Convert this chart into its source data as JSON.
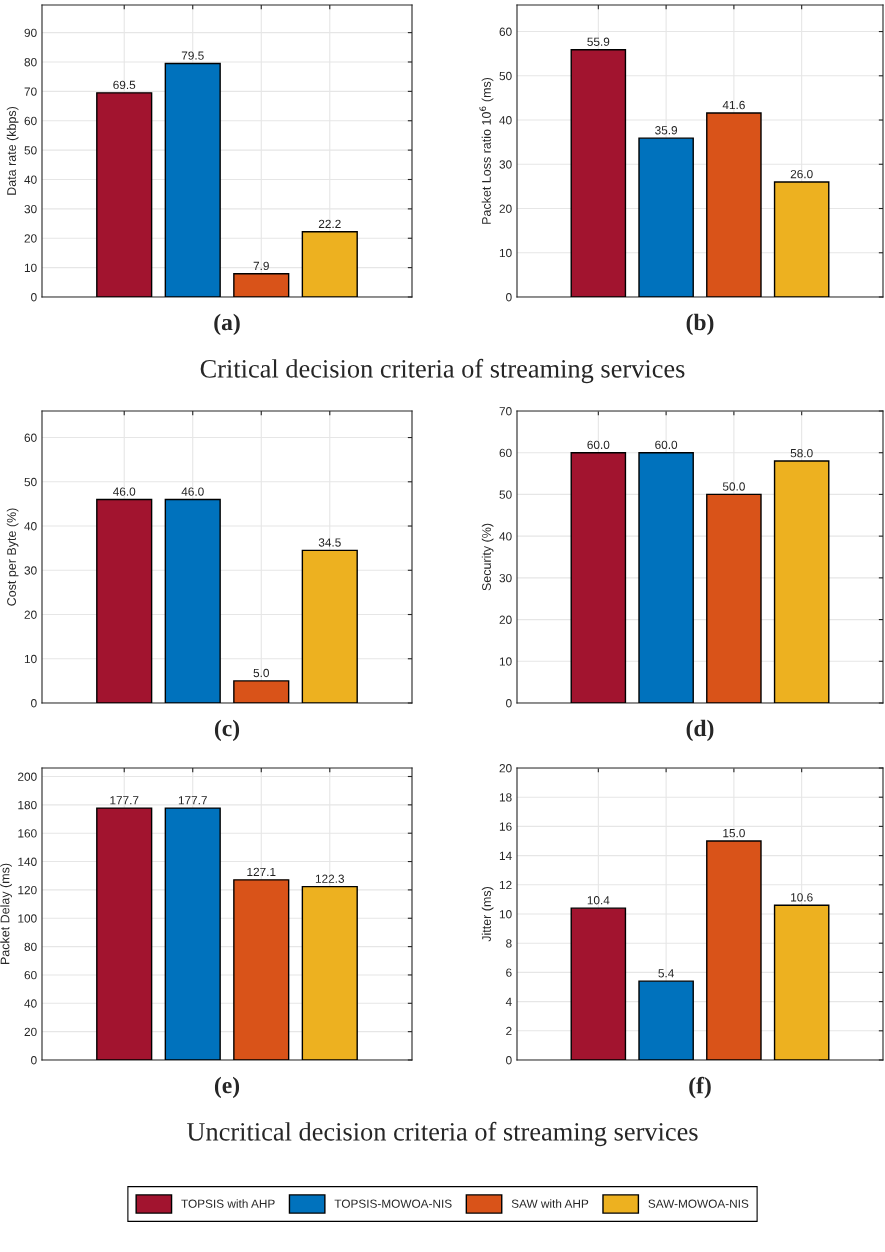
{
  "chart_data": [
    {
      "type": "bar",
      "categories": [
        null,
        null,
        null,
        null
      ],
      "values": [
        69.5,
        79.5,
        7.9,
        22.2
      ],
      "colors": [
        "#a2142f",
        "#0072bd",
        "#d95319",
        "#edb120"
      ],
      "ylabel": "Data rate (kbps)",
      "xlabel": "(a)",
      "ylim": [
        0,
        99.4
      ],
      "yticks": [
        0,
        10,
        20,
        30,
        40,
        50,
        60,
        70,
        80,
        90
      ],
      "grid": true,
      "tick_labels": "y",
      "value_labels": [
        "69.5",
        "79.5",
        "7.9",
        "22.2"
      ],
      "annotations": [
        "Critical decision criteria of streaming services"
      ]
    },
    {
      "type": "bar",
      "categories": [
        null,
        null,
        null,
        null
      ],
      "values": [
        55.9,
        35.9,
        41.6,
        26.0
      ],
      "colors": [
        "#a2142f",
        "#0072bd",
        "#d95319",
        "#edb120"
      ],
      "ylabel": "Packet Loss ratio 10$^{6}$ (ms)",
      "xlabel": "(b)",
      "ylim": [
        0,
        66
      ],
      "yticks": [
        0,
        10,
        20,
        30,
        40,
        50,
        60
      ],
      "grid": true,
      "tick_labels": "y",
      "value_labels": [
        "55.9",
        "35.9",
        "41.6",
        "26.0"
      ]
    },
    {
      "type": "bar",
      "categories": [
        null,
        null,
        null,
        null
      ],
      "values": [
        46.0,
        46.0,
        5.0,
        34.5
      ],
      "colors": [
        "#a2142f",
        "#0072bd",
        "#d95319",
        "#edb120"
      ],
      "ylabel": "Cost per Byte (%)",
      "xlabel": "(c)",
      "ylim": [
        0,
        66
      ],
      "yticks": [
        0,
        10,
        20,
        30,
        40,
        50,
        60
      ],
      "grid": true,
      "tick_labels": "y",
      "value_labels": [
        "46.0",
        "46.0",
        "5.0",
        "34.5"
      ]
    },
    {
      "type": "bar",
      "categories": [
        null,
        null,
        null,
        null
      ],
      "values": [
        60.0,
        60.0,
        50.0,
        58.0
      ],
      "colors": [
        "#a2142f",
        "#0072bd",
        "#d95319",
        "#edb120"
      ],
      "ylabel": "Security (%)",
      "xlabel": "(d)",
      "ylim": [
        0,
        70
      ],
      "yticks": [
        0,
        10,
        20,
        30,
        40,
        50,
        60,
        70
      ],
      "grid": true,
      "tick_labels": "y",
      "value_labels": [
        "60.0",
        "60.0",
        "50.0",
        "58.0"
      ]
    },
    {
      "type": "bar",
      "categories": [
        null,
        null,
        null,
        null
      ],
      "values": [
        177.7,
        177.7,
        127.1,
        122.3
      ],
      "colors": [
        "#a2142f",
        "#0072bd",
        "#d95319",
        "#edb120"
      ],
      "ylabel": "Packet Delay (ms)",
      "xlabel": "(e)",
      "ylim": [
        0,
        206
      ],
      "yticks": [
        0,
        20,
        40,
        60,
        80,
        100,
        120,
        140,
        160,
        180,
        200
      ],
      "grid": true,
      "tick_labels": "y",
      "value_labels": [
        "177.7",
        "177.7",
        "127.1",
        "122.3"
      ],
      "annotations": [
        "Uncritical decision criteria of streaming services"
      ]
    },
    {
      "type": "bar",
      "categories": [
        null,
        null,
        null,
        null
      ],
      "stacked": true,
      "series": [
        {
          "name": "TOPSIS with AHP",
          "color": "#a2142f",
          "values": [
            10.4,
            null,
            null,
            null
          ],
          "value_labels": [
            "10.4",
            null,
            null,
            null
          ]
        },
        {
          "name": "TOPSIS-MOWOA-NIS",
          "color": "#0072bd",
          "values": [
            null,
            5.4,
            null,
            null
          ],
          "value_labels": [
            null,
            "5.4",
            null,
            null
          ]
        },
        {
          "name": "SAW with AHP",
          "color": "#d95319",
          "values": [
            null,
            null,
            15.0,
            null
          ],
          "value_labels": [
            null,
            null,
            "15.0",
            null
          ]
        },
        {
          "name": "SAW-MOWOA-NIS",
          "color": "#edb120",
          "values": [
            null,
            null,
            null,
            10.6
          ],
          "value_labels": [
            null,
            null,
            null,
            "10.6"
          ]
        }
      ],
      "ylabel": "Jitter (ms)",
      "xlabel": "(f)",
      "ylim": [
        0,
        20
      ],
      "yticks": [
        0,
        2,
        4,
        6,
        8,
        10,
        12,
        14,
        16,
        18,
        20
      ],
      "grid": true,
      "tick_labels": "y",
      "legend": "bottom"
    }
  ]
}
